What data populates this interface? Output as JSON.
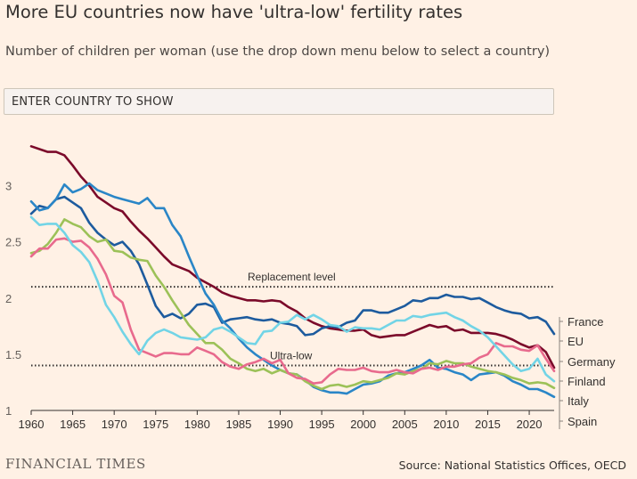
{
  "header": {
    "title": "More EU countries now have 'ultra-low' fertility rates",
    "subtitle": "Number of children per woman (use the drop down menu below to select a country)"
  },
  "country_selector": {
    "label": "ENTER COUNTRY TO SHOW"
  },
  "footer": {
    "logo": "FINANCIAL TIMES",
    "source": "Source: National Statistics Offices, OECD"
  },
  "colors": {
    "background": "#fff1e5",
    "France": "#1d5b9e",
    "EU": "#7b0a2a",
    "Germany": "#e86a8d",
    "Finland": "#72d4e6",
    "Italy": "#9cc158",
    "Spain": "#2a86c7",
    "reference": "#33302e"
  },
  "chart_data": {
    "type": "line",
    "title": "More EU countries now have 'ultra-low' fertility rates",
    "ylabel": "",
    "xlabel": "",
    "xlim": [
      1960,
      2023
    ],
    "ylim": [
      1,
      3.4
    ],
    "xticks": [
      "1960",
      "1965",
      "1970",
      "1975",
      "1980",
      "1985",
      "1990",
      "1995",
      "2000",
      "2005",
      "2010",
      "2015",
      "2020"
    ],
    "yticks": [
      "1",
      "1.5",
      "2",
      "2.5",
      "3"
    ],
    "grid": false,
    "legend": "end-of-line labels",
    "reference_lines": [
      {
        "label": "Replacement level",
        "y": 2.1
      },
      {
        "label": "Ultra-low",
        "y": 1.4
      }
    ],
    "series": [
      {
        "name": "EU",
        "x": [
          1960,
          1962,
          1963,
          1964,
          1965,
          1966,
          1967,
          1968,
          1969,
          1970,
          1971,
          1972,
          1973,
          1974,
          1975,
          1976,
          1977,
          1978,
          1979,
          1980,
          1981,
          1982,
          1983,
          1984,
          1985,
          1986,
          1987,
          1988,
          1989,
          1990,
          1991,
          1992,
          1993,
          1994,
          1995,
          1996,
          1997,
          1998,
          1999,
          2000,
          2001,
          2002,
          2003,
          2004,
          2005,
          2006,
          2007,
          2008,
          2009,
          2010,
          2011,
          2012,
          2013,
          2014,
          2015,
          2016,
          2017,
          2018,
          2019,
          2020,
          2021,
          2022,
          2023
        ],
        "y": [
          3.35,
          3.3,
          3.3,
          3.27,
          3.18,
          3.08,
          3.0,
          2.9,
          2.85,
          2.8,
          2.77,
          2.68,
          2.6,
          2.53,
          2.45,
          2.37,
          2.3,
          2.27,
          2.24,
          2.18,
          2.14,
          2.1,
          2.05,
          2.02,
          2.0,
          1.98,
          1.98,
          1.97,
          1.98,
          1.97,
          1.92,
          1.88,
          1.82,
          1.78,
          1.75,
          1.73,
          1.72,
          1.71,
          1.71,
          1.72,
          1.67,
          1.65,
          1.66,
          1.67,
          1.67,
          1.7,
          1.73,
          1.76,
          1.74,
          1.75,
          1.71,
          1.72,
          1.69,
          1.69,
          1.69,
          1.68,
          1.66,
          1.63,
          1.59,
          1.56,
          1.58,
          1.52,
          1.38
        ]
      },
      {
        "name": "France",
        "x": [
          1960,
          1961,
          1962,
          1963,
          1964,
          1965,
          1966,
          1967,
          1968,
          1969,
          1970,
          1971,
          1972,
          1973,
          1974,
          1975,
          1976,
          1977,
          1978,
          1979,
          1980,
          1981,
          1982,
          1983,
          1984,
          1985,
          1986,
          1987,
          1988,
          1989,
          1990,
          1991,
          1992,
          1993,
          1994,
          1995,
          1996,
          1997,
          1998,
          1999,
          2000,
          2001,
          2002,
          2003,
          2004,
          2005,
          2006,
          2007,
          2008,
          2009,
          2010,
          2011,
          2012,
          2013,
          2014,
          2015,
          2016,
          2017,
          2018,
          2019,
          2020,
          2021,
          2022,
          2023
        ],
        "y": [
          2.75,
          2.82,
          2.8,
          2.88,
          2.9,
          2.85,
          2.8,
          2.67,
          2.58,
          2.52,
          2.47,
          2.5,
          2.42,
          2.3,
          2.12,
          1.93,
          1.83,
          1.86,
          1.82,
          1.86,
          1.94,
          1.95,
          1.92,
          1.78,
          1.81,
          1.82,
          1.83,
          1.81,
          1.8,
          1.81,
          1.78,
          1.77,
          1.75,
          1.67,
          1.68,
          1.73,
          1.75,
          1.74,
          1.78,
          1.8,
          1.89,
          1.89,
          1.87,
          1.87,
          1.9,
          1.93,
          1.98,
          1.97,
          2.0,
          2.0,
          2.03,
          2.01,
          2.01,
          1.99,
          2.0,
          1.96,
          1.92,
          1.89,
          1.87,
          1.86,
          1.82,
          1.83,
          1.79,
          1.68
        ]
      },
      {
        "name": "Spain",
        "x": [
          1960,
          1961,
          1962,
          1963,
          1964,
          1965,
          1966,
          1967,
          1968,
          1969,
          1970,
          1971,
          1972,
          1973,
          1974,
          1975,
          1976,
          1977,
          1978,
          1979,
          1980,
          1981,
          1982,
          1983,
          1984,
          1985,
          1986,
          1987,
          1988,
          1989,
          1990,
          1991,
          1992,
          1993,
          1994,
          1995,
          1996,
          1997,
          1998,
          1999,
          2000,
          2001,
          2002,
          2003,
          2004,
          2005,
          2006,
          2007,
          2008,
          2009,
          2010,
          2011,
          2012,
          2013,
          2014,
          2015,
          2016,
          2017,
          2018,
          2019,
          2020,
          2021,
          2022,
          2023
        ],
        "y": [
          2.86,
          2.78,
          2.8,
          2.88,
          3.01,
          2.94,
          2.97,
          3.02,
          2.96,
          2.93,
          2.9,
          2.88,
          2.86,
          2.84,
          2.89,
          2.8,
          2.8,
          2.65,
          2.55,
          2.37,
          2.2,
          2.04,
          1.94,
          1.8,
          1.73,
          1.64,
          1.56,
          1.5,
          1.45,
          1.4,
          1.36,
          1.33,
          1.32,
          1.27,
          1.21,
          1.18,
          1.16,
          1.16,
          1.15,
          1.19,
          1.23,
          1.24,
          1.26,
          1.31,
          1.33,
          1.34,
          1.37,
          1.4,
          1.45,
          1.38,
          1.37,
          1.34,
          1.32,
          1.27,
          1.32,
          1.33,
          1.34,
          1.31,
          1.26,
          1.23,
          1.19,
          1.19,
          1.16,
          1.12
        ]
      },
      {
        "name": "Italy",
        "x": [
          1960,
          1961,
          1962,
          1963,
          1964,
          1965,
          1966,
          1967,
          1968,
          1969,
          1970,
          1971,
          1972,
          1973,
          1974,
          1975,
          1976,
          1977,
          1978,
          1979,
          1980,
          1981,
          1982,
          1983,
          1984,
          1985,
          1986,
          1987,
          1988,
          1989,
          1990,
          1991,
          1992,
          1993,
          1994,
          1995,
          1996,
          1997,
          1998,
          1999,
          2000,
          2001,
          2002,
          2003,
          2004,
          2005,
          2006,
          2007,
          2008,
          2009,
          2010,
          2011,
          2012,
          2013,
          2014,
          2015,
          2016,
          2017,
          2018,
          2019,
          2020,
          2021,
          2022,
          2023
        ],
        "y": [
          2.4,
          2.42,
          2.48,
          2.58,
          2.7,
          2.66,
          2.63,
          2.55,
          2.5,
          2.52,
          2.42,
          2.41,
          2.36,
          2.34,
          2.33,
          2.2,
          2.1,
          1.98,
          1.87,
          1.76,
          1.68,
          1.6,
          1.6,
          1.54,
          1.46,
          1.42,
          1.37,
          1.35,
          1.37,
          1.33,
          1.36,
          1.33,
          1.32,
          1.26,
          1.22,
          1.19,
          1.22,
          1.23,
          1.21,
          1.23,
          1.26,
          1.25,
          1.27,
          1.29,
          1.33,
          1.32,
          1.35,
          1.37,
          1.42,
          1.41,
          1.44,
          1.42,
          1.42,
          1.39,
          1.37,
          1.35,
          1.34,
          1.32,
          1.29,
          1.27,
          1.24,
          1.25,
          1.24,
          1.2
        ]
      },
      {
        "name": "Germany",
        "x": [
          1960,
          1961,
          1962,
          1963,
          1964,
          1965,
          1966,
          1967,
          1968,
          1969,
          1970,
          1971,
          1972,
          1973,
          1974,
          1975,
          1976,
          1977,
          1978,
          1979,
          1980,
          1981,
          1982,
          1983,
          1984,
          1985,
          1986,
          1987,
          1988,
          1989,
          1990,
          1991,
          1992,
          1993,
          1994,
          1995,
          1996,
          1997,
          1998,
          1999,
          2000,
          2001,
          2002,
          2003,
          2004,
          2005,
          2006,
          2007,
          2008,
          2009,
          2010,
          2011,
          2012,
          2013,
          2014,
          2015,
          2016,
          2017,
          2018,
          2019,
          2020,
          2021,
          2022,
          2023
        ],
        "y": [
          2.37,
          2.44,
          2.44,
          2.52,
          2.53,
          2.5,
          2.51,
          2.45,
          2.35,
          2.21,
          2.02,
          1.96,
          1.72,
          1.54,
          1.51,
          1.48,
          1.51,
          1.51,
          1.5,
          1.5,
          1.56,
          1.53,
          1.5,
          1.43,
          1.39,
          1.37,
          1.41,
          1.43,
          1.46,
          1.42,
          1.45,
          1.33,
          1.29,
          1.28,
          1.24,
          1.25,
          1.32,
          1.37,
          1.36,
          1.36,
          1.38,
          1.35,
          1.34,
          1.34,
          1.36,
          1.34,
          1.33,
          1.37,
          1.38,
          1.36,
          1.39,
          1.39,
          1.41,
          1.42,
          1.47,
          1.5,
          1.6,
          1.57,
          1.57,
          1.54,
          1.53,
          1.58,
          1.46,
          1.35
        ]
      },
      {
        "name": "Finland",
        "x": [
          1960,
          1961,
          1962,
          1963,
          1964,
          1965,
          1966,
          1967,
          1968,
          1969,
          1970,
          1971,
          1972,
          1973,
          1974,
          1975,
          1976,
          1977,
          1978,
          1979,
          1980,
          1981,
          1982,
          1983,
          1984,
          1985,
          1986,
          1987,
          1988,
          1989,
          1990,
          1991,
          1992,
          1993,
          1994,
          1995,
          1996,
          1997,
          1998,
          1999,
          2000,
          2001,
          2002,
          2003,
          2004,
          2005,
          2006,
          2007,
          2008,
          2009,
          2010,
          2011,
          2012,
          2013,
          2014,
          2015,
          2016,
          2017,
          2018,
          2019,
          2020,
          2021,
          2022,
          2023
        ],
        "y": [
          2.72,
          2.65,
          2.66,
          2.66,
          2.58,
          2.47,
          2.41,
          2.32,
          2.15,
          1.94,
          1.83,
          1.7,
          1.59,
          1.5,
          1.62,
          1.69,
          1.72,
          1.69,
          1.65,
          1.64,
          1.63,
          1.65,
          1.72,
          1.74,
          1.7,
          1.65,
          1.6,
          1.59,
          1.7,
          1.71,
          1.78,
          1.79,
          1.85,
          1.81,
          1.85,
          1.81,
          1.76,
          1.75,
          1.7,
          1.74,
          1.73,
          1.73,
          1.72,
          1.76,
          1.8,
          1.8,
          1.84,
          1.83,
          1.85,
          1.86,
          1.87,
          1.83,
          1.8,
          1.75,
          1.71,
          1.65,
          1.57,
          1.49,
          1.41,
          1.35,
          1.37,
          1.46,
          1.32,
          1.26
        ]
      }
    ],
    "labels_order": [
      "France",
      "EU",
      "Germany",
      "Finland",
      "Italy",
      "Spain"
    ]
  }
}
